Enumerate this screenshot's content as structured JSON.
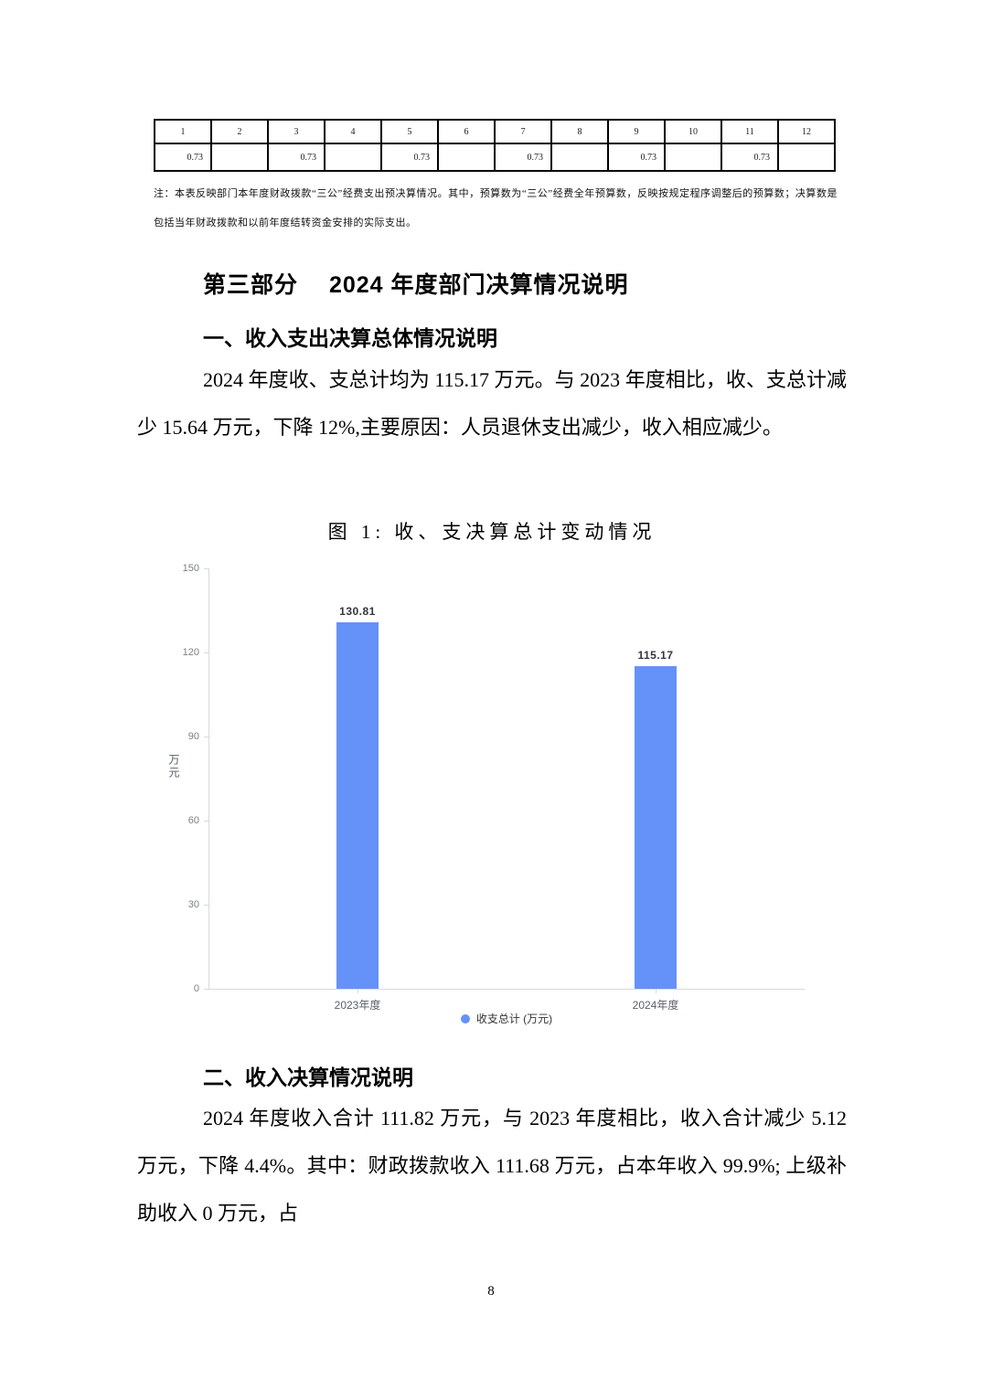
{
  "doc": {
    "note": "注：本表反映部门本年度财政拨款“三公”经费支出预决算情况。其中，预算数为“三公”经费全年预算数，反映按规定程序调整后的预算数；决算数是包括当年财政拨款和以前年度结转资金安排的实际支出。",
    "part3_heading": "第三部分　 2024 年度部门决算情况说明",
    "section1_heading": "一、收入支出决算总体情况说明",
    "para1": "2024 年度收、支总计均为 115.17 万元。与 2023 年度相比，收、支总计减少 15.64 万元，下降 12%,主要原因：人员退休支出减少，收入相应减少。",
    "figure1_title": "图 1: 收、支决算总计变动情况",
    "section2_heading": "二、收入决算情况说明",
    "para2": "2024 年度收入合计 111.82 万元，与 2023 年度相比，收入合计减少 5.12 万元，下降 4.4%。其中：财政拨款收入 111.68 万元，占本年收入 99.9%; 上级补助收入 0 万元，占",
    "page_number": "8"
  },
  "table": {
    "headers": [
      "1",
      "2",
      "3",
      "4",
      "5",
      "6",
      "7",
      "8",
      "9",
      "10",
      "11",
      "12"
    ],
    "values": [
      "0.73",
      "",
      "0.73",
      "",
      "0.73",
      "",
      "0.73",
      "",
      "0.73",
      "",
      "0.73",
      ""
    ]
  },
  "chart_data": {
    "type": "bar",
    "title": "图 1: 收、支决算总计变动情况",
    "categories": [
      "2023年度",
      "2024年度"
    ],
    "series": [
      {
        "name": "收支总计 (万元)",
        "values": [
          130.81,
          115.17
        ]
      }
    ],
    "xlabel": "",
    "ylabel": "万元",
    "ylim": [
      0,
      150
    ],
    "yticks": [
      0,
      30,
      60,
      90,
      120,
      150
    ],
    "bar_color": "#6492F8",
    "axis_color": "#d6d9de",
    "tick_label_color": "#7a8089",
    "value_label_color": "#33373d",
    "legend_position": "bottom",
    "grid": false
  }
}
